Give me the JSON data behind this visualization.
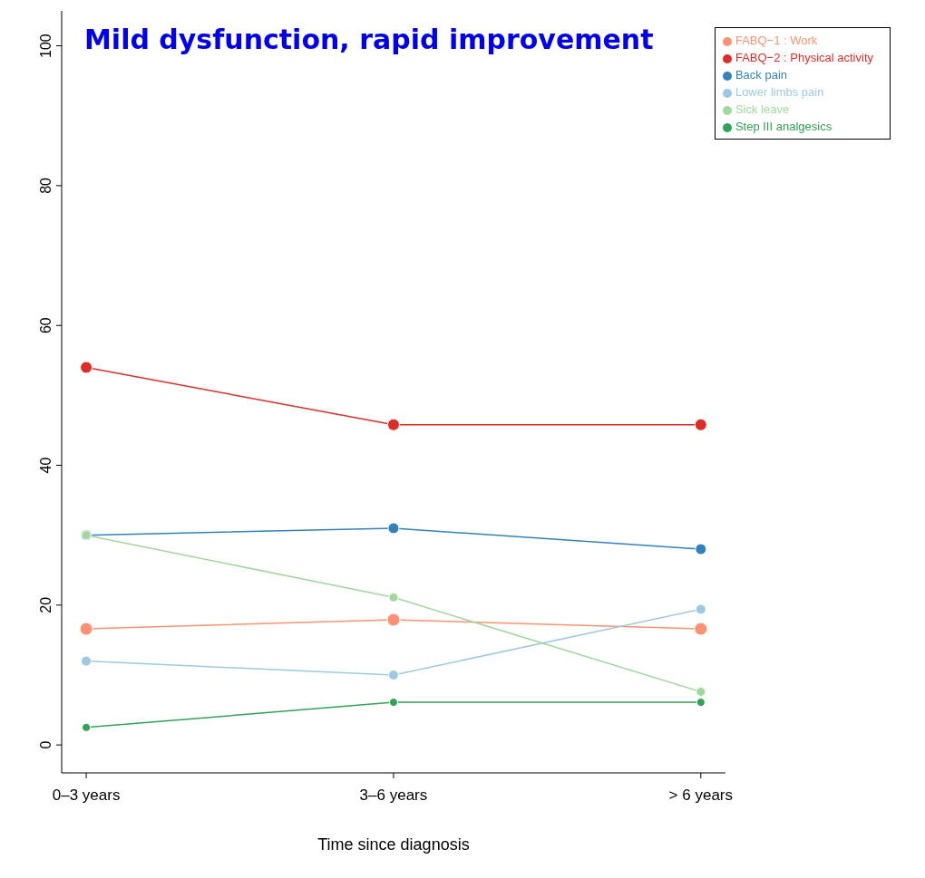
{
  "chart_data": {
    "type": "line",
    "title": "Mild dysfunction, rapid improvement",
    "xlabel": "Time since diagnosis",
    "categories": [
      "0–3 years",
      "3–6 years",
      "> 6 years"
    ],
    "series": [
      {
        "name": "FABQ−1 : Work",
        "color": "#fc9272",
        "values": [
          16.6,
          17.9,
          16.6
        ]
      },
      {
        "name": "FABQ−2 : Physical activity",
        "color": "#de2d26",
        "values": [
          54,
          45.8,
          45.8
        ]
      },
      {
        "name": "Back pain",
        "color": "#3182bd",
        "values": [
          30,
          31,
          28
        ]
      },
      {
        "name": "Lower limbs pain",
        "color": "#9ecae1",
        "values": [
          12,
          10,
          19.4
        ]
      },
      {
        "name": "Sick leave",
        "color": "#a1d99b",
        "values": [
          30,
          21.1,
          7.6
        ]
      },
      {
        "name": "Step III analgesics",
        "color": "#31a354",
        "values": [
          2.5,
          6.1,
          6.1
        ]
      }
    ],
    "ylim": [
      -4,
      105
    ],
    "yticks": [
      0,
      20,
      40,
      60,
      80,
      100
    ],
    "grid": false,
    "legend": "top right",
    "marker": "circle",
    "line_style": "solid"
  }
}
